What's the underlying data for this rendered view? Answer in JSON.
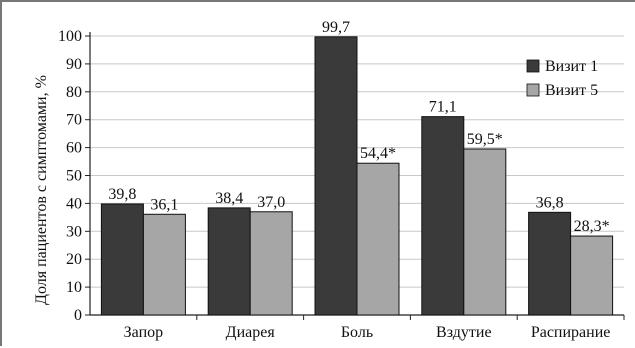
{
  "chart_data": {
    "type": "bar",
    "ylabel": "Доля пациентов с симптомами, %",
    "ylim": [
      0,
      100
    ],
    "ytick_step": 10,
    "grid": true,
    "legend_position": "top-right",
    "categories": [
      "Запор",
      "Диарея",
      "Боль",
      "Вздутие",
      "Распирание"
    ],
    "series": [
      {
        "name": "Визит 1",
        "color": "#3a3a3a",
        "values": [
          39.8,
          38.4,
          99.7,
          71.1,
          36.8
        ],
        "labels": [
          "39,8",
          "38,4",
          "99,7",
          "71,1",
          "36,8"
        ]
      },
      {
        "name": "Визит 5",
        "color": "#a6a6a6",
        "values": [
          36.1,
          37.0,
          54.4,
          59.5,
          28.3
        ],
        "labels": [
          "36,1",
          "37,0",
          "54,4*",
          "59,5*",
          "28,3*"
        ]
      }
    ]
  }
}
